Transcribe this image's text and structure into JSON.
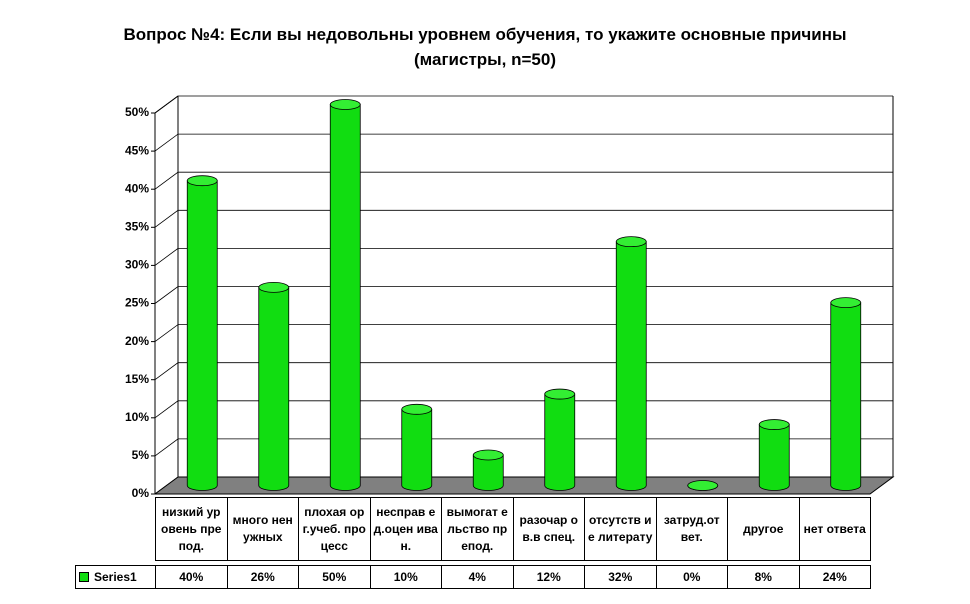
{
  "chart_data": {
    "type": "bar3d",
    "title": "Вопрос №4: Если вы недовольны уровнем обучения, то укажите основные причины (магистры, n=50)",
    "categories": [
      "низкий уровень препод.",
      "много ненужных",
      "плохая орг.учеб. процесс",
      "несправ ед.оцен иван.",
      "вымогат ельство препод.",
      "разочар ов.в спец.",
      "отсутств ие литерату",
      "затруд.от вет.",
      "другое",
      "нет ответа"
    ],
    "series": [
      {
        "name": "Series1",
        "color": "#11dd11",
        "values": [
          40,
          26,
          50,
          10,
          4,
          12,
          32,
          0,
          8,
          24
        ],
        "value_labels": [
          "40%",
          "26%",
          "50%",
          "10%",
          "4%",
          "12%",
          "32%",
          "0%",
          "8%",
          "24%"
        ]
      }
    ],
    "ylim": [
      0,
      50
    ],
    "yticks": [
      {
        "value": 0,
        "label": "0%"
      },
      {
        "value": 5,
        "label": "5%"
      },
      {
        "value": 10,
        "label": "10%"
      },
      {
        "value": 15,
        "label": "15%"
      },
      {
        "value": 20,
        "label": "20%"
      },
      {
        "value": 25,
        "label": "25%"
      },
      {
        "value": 30,
        "label": "30%"
      },
      {
        "value": 35,
        "label": "35%"
      },
      {
        "value": 40,
        "label": "40%"
      },
      {
        "value": 45,
        "label": "45%"
      },
      {
        "value": 50,
        "label": "50%"
      }
    ],
    "grid": true
  }
}
